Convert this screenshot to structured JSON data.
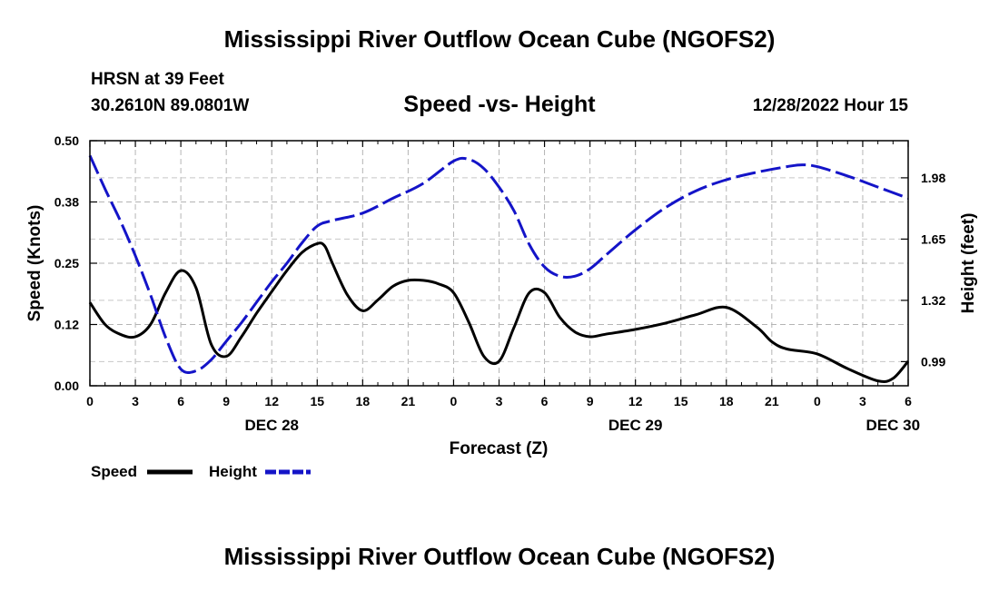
{
  "page": {
    "title": "Mississippi River Outflow Ocean Cube (NGOFS2)",
    "station": "HRSN at 39 Feet",
    "coordinates": "30.2610N  89.0801W",
    "timestamp": "12/28/2022 Hour 15",
    "footer_title": "Mississippi River Outflow Ocean Cube (NGOFS2)"
  },
  "chart_data": {
    "type": "line",
    "title": "Speed -vs- Height",
    "xlabel": "Forecast (Z)",
    "ylabel": "Speed (Knots)",
    "y2label": "Height (feet)",
    "x_range": [
      0,
      54
    ],
    "x_ticks": [
      0,
      3,
      6,
      9,
      12,
      15,
      18,
      21,
      24,
      27,
      30,
      33,
      36,
      39,
      42,
      45,
      48,
      51,
      54
    ],
    "x_tick_labels": [
      "0",
      "3",
      "6",
      "9",
      "12",
      "15",
      "18",
      "21",
      "0",
      "3",
      "6",
      "9",
      "12",
      "15",
      "18",
      "21",
      "0",
      "3",
      "6"
    ],
    "date_labels": [
      {
        "x": 12,
        "label": "DEC 28"
      },
      {
        "x": 36,
        "label": "DEC 29"
      },
      {
        "x": 53,
        "label": "DEC 30"
      }
    ],
    "ylim": [
      0,
      0.5
    ],
    "y_ticks": [
      0,
      0.125,
      0.25,
      0.375,
      0.5
    ],
    "y_tick_labels": [
      "0.00",
      "0.12",
      "0.25",
      "0.38",
      "0.50"
    ],
    "y2lim": [
      0.86,
      2.18
    ],
    "y2_ticks": [
      0.99,
      1.32,
      1.65,
      1.98
    ],
    "y2_tick_labels": [
      "0.99",
      "1.32",
      "1.65",
      "1.98"
    ],
    "grid": true,
    "legend_position": "bottom-left",
    "series": [
      {
        "name": "Speed",
        "axis": "left",
        "color": "#000000",
        "style": "solid",
        "x": [
          0,
          1,
          2,
          3,
          4,
          5,
          6,
          7,
          8,
          9,
          10,
          11,
          12,
          13,
          14,
          15,
          15.5,
          16,
          17,
          18,
          19,
          20,
          21,
          22,
          23,
          24,
          25,
          26,
          27,
          28,
          29,
          30,
          31,
          32,
          33,
          34,
          36,
          38,
          40,
          42,
          44,
          45,
          46,
          48,
          50,
          52,
          53,
          54
        ],
        "values": [
          0.17,
          0.125,
          0.105,
          0.1,
          0.125,
          0.19,
          0.235,
          0.2,
          0.085,
          0.06,
          0.1,
          0.148,
          0.192,
          0.235,
          0.272,
          0.29,
          0.285,
          0.25,
          0.185,
          0.153,
          0.175,
          0.203,
          0.215,
          0.215,
          0.208,
          0.19,
          0.13,
          0.06,
          0.05,
          0.12,
          0.19,
          0.19,
          0.14,
          0.11,
          0.1,
          0.105,
          0.115,
          0.128,
          0.145,
          0.16,
          0.12,
          0.09,
          0.075,
          0.065,
          0.035,
          0.01,
          0.015,
          0.05
        ]
      },
      {
        "name": "Height",
        "axis": "right",
        "color": "#1414c8",
        "style": "dashed",
        "x": [
          0,
          1,
          2,
          3,
          4,
          5,
          6,
          7,
          8,
          9,
          10,
          11,
          12,
          13,
          14,
          15,
          16,
          18,
          20,
          22,
          24,
          25,
          26,
          27,
          28,
          29,
          30,
          31,
          32,
          33,
          34,
          36,
          38,
          40,
          42,
          44,
          46,
          47,
          48,
          50,
          52,
          54
        ],
        "values": [
          2.1,
          1.92,
          1.75,
          1.56,
          1.35,
          1.12,
          0.95,
          0.94,
          1.0,
          1.1,
          1.2,
          1.31,
          1.42,
          1.52,
          1.63,
          1.72,
          1.75,
          1.79,
          1.87,
          1.95,
          2.07,
          2.08,
          2.03,
          1.93,
          1.8,
          1.62,
          1.5,
          1.45,
          1.45,
          1.49,
          1.56,
          1.7,
          1.82,
          1.91,
          1.97,
          2.01,
          2.04,
          2.05,
          2.04,
          1.99,
          1.93,
          1.87
        ]
      }
    ]
  }
}
